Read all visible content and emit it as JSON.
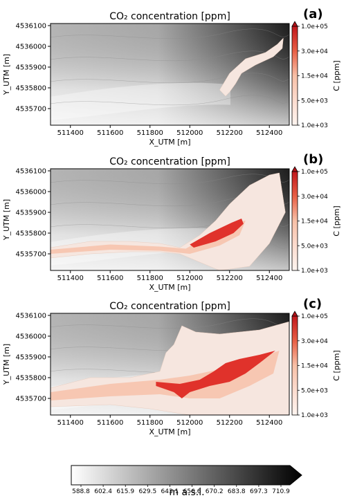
{
  "chart_data": [
    {
      "type": "heatmap",
      "panel": "(a)",
      "title": "CO₂ concentration [ppm]",
      "xlabel": "X_UTM [m]",
      "ylabel": "Y_UTM [m]",
      "xlim": [
        511300,
        512500
      ],
      "ylim": [
        4535620,
        4536110
      ],
      "xticks": [
        "511400",
        "511600",
        "511800",
        "512000",
        "512200",
        "512400"
      ],
      "yticks": [
        "4535700",
        "4535800",
        "4535900",
        "4536000",
        "4536100"
      ],
      "colorbar": {
        "label": "C [ppm]",
        "ticks": [
          "1.0e+03",
          "5.0e+03",
          "1.5e+04",
          "3.0e+04",
          "1.0e+05"
        ]
      },
      "plume": {
        "outer": [
          [
            512200,
            4535780
          ],
          [
            512180,
            4535760
          ],
          [
            512150,
            4535790
          ],
          [
            512200,
            4535870
          ],
          [
            512280,
            4535940
          ],
          [
            512380,
            4535970
          ],
          [
            512440,
            4536010
          ],
          [
            512470,
            4536040
          ],
          [
            512465,
            4535990
          ],
          [
            512420,
            4535950
          ],
          [
            512330,
            4535910
          ],
          [
            512260,
            4535870
          ],
          [
            512230,
            4535820
          ]
        ]
      }
    },
    {
      "type": "heatmap",
      "panel": "(b)",
      "title": "CO₂ concentration [ppm]",
      "xlabel": "X_UTM [m]",
      "ylabel": "Y_UTM [m]",
      "xlim": [
        511300,
        512500
      ],
      "ylim": [
        4535620,
        4536110
      ],
      "xticks": [
        "511400",
        "511600",
        "511800",
        "512000",
        "512200",
        "512400"
      ],
      "yticks": [
        "4535700",
        "4535800",
        "4535900",
        "4536000",
        "4536100"
      ],
      "colorbar": {
        "label": "C [ppm]",
        "ticks": [
          "1.0e+03",
          "5.0e+03",
          "1.5e+04",
          "3.0e+04",
          "1.0e+05"
        ]
      },
      "plume": {
        "outer": [
          [
            511300,
            4535730
          ],
          [
            511500,
            4535760
          ],
          [
            511700,
            4535760
          ],
          [
            511850,
            4535750
          ],
          [
            511950,
            4535730
          ],
          [
            512050,
            4535790
          ],
          [
            512130,
            4535860
          ],
          [
            512200,
            4535940
          ],
          [
            512300,
            4536030
          ],
          [
            512400,
            4536080
          ],
          [
            512450,
            4536090
          ],
          [
            512480,
            4535900
          ],
          [
            512400,
            4535750
          ],
          [
            512300,
            4535640
          ],
          [
            512150,
            4535620
          ],
          [
            512050,
            4535660
          ],
          [
            511950,
            4535700
          ],
          [
            511850,
            4535710
          ],
          [
            511700,
            4535710
          ],
          [
            511500,
            4535700
          ],
          [
            511300,
            4535680
          ]
        ],
        "mid": [
          [
            511300,
            4535720
          ],
          [
            511600,
            4535745
          ],
          [
            511850,
            4535735
          ],
          [
            511980,
            4535725
          ],
          [
            512100,
            4535790
          ],
          [
            512230,
            4535850
          ],
          [
            512280,
            4535860
          ],
          [
            512250,
            4535790
          ],
          [
            512150,
            4535740
          ],
          [
            512000,
            4535700
          ],
          [
            511850,
            4535715
          ],
          [
            511600,
            4535720
          ],
          [
            511300,
            4535700
          ]
        ],
        "core": [
          [
            512000,
            4535745
          ],
          [
            512100,
            4535800
          ],
          [
            512210,
            4535850
          ],
          [
            512260,
            4535870
          ],
          [
            512270,
            4535845
          ],
          [
            512220,
            4535800
          ],
          [
            512130,
            4535760
          ],
          [
            512020,
            4535730
          ]
        ]
      }
    },
    {
      "type": "heatmap",
      "panel": "(c)",
      "title": "CO₂ concentration [ppm]",
      "xlabel": "X_UTM [m]",
      "ylabel": "Y_UTM [m]",
      "xlim": [
        511300,
        512500
      ],
      "ylim": [
        4535620,
        4536110
      ],
      "xticks": [
        "511400",
        "511600",
        "511800",
        "512000",
        "512200",
        "512400"
      ],
      "yticks": [
        "4535700",
        "4535800",
        "4535900",
        "4536000",
        "4536100"
      ],
      "colorbar": {
        "label": "C [ppm]",
        "ticks": [
          "1.0e+03",
          "5.0e+03",
          "1.5e+04",
          "3.0e+04",
          "1.0e+05"
        ]
      },
      "plume": {
        "outer": [
          [
            511300,
            4535750
          ],
          [
            511500,
            4535800
          ],
          [
            511700,
            4535800
          ],
          [
            511850,
            4535830
          ],
          [
            511880,
            4535920
          ],
          [
            511920,
            4535960
          ],
          [
            511960,
            4536050
          ],
          [
            512030,
            4536020
          ],
          [
            512150,
            4536010
          ],
          [
            512250,
            4536020
          ],
          [
            512350,
            4536030
          ],
          [
            512500,
            4536070
          ],
          [
            512500,
            4535620
          ],
          [
            512000,
            4535620
          ],
          [
            511800,
            4535650
          ],
          [
            511600,
            4535670
          ],
          [
            511300,
            4535660
          ]
        ],
        "mid": [
          [
            511300,
            4535730
          ],
          [
            511600,
            4535770
          ],
          [
            511850,
            4535790
          ],
          [
            512000,
            4535810
          ],
          [
            512150,
            4535840
          ],
          [
            512300,
            4535880
          ],
          [
            512450,
            4535930
          ],
          [
            512420,
            4535820
          ],
          [
            512300,
            4535760
          ],
          [
            512150,
            4535700
          ],
          [
            512000,
            4535700
          ],
          [
            511850,
            4535720
          ],
          [
            511600,
            4535710
          ],
          [
            511300,
            4535690
          ]
        ],
        "core": [
          [
            511830,
            4535780
          ],
          [
            511950,
            4535770
          ],
          [
            512050,
            4535790
          ],
          [
            512120,
            4535830
          ],
          [
            512180,
            4535870
          ],
          [
            512250,
            4535890
          ],
          [
            512350,
            4535910
          ],
          [
            512430,
            4535930
          ],
          [
            512350,
            4535870
          ],
          [
            512280,
            4535820
          ],
          [
            512200,
            4535780
          ],
          [
            512100,
            4535760
          ],
          [
            512000,
            4535730
          ],
          [
            511960,
            4535700
          ],
          [
            511920,
            4535730
          ],
          [
            511830,
            4535760
          ]
        ]
      }
    }
  ],
  "elevation_colorbar": {
    "unit_label": "m a.s.l.",
    "ticks": [
      "588.8",
      "602.4",
      "615.9",
      "629.5",
      "643.1",
      "656.6",
      "670.2",
      "683.8",
      "697.3",
      "710.9"
    ]
  },
  "colors": {
    "plume_outer": "#f6e6df",
    "plume_mid": "#f7c1aa",
    "plume_core": "#e0322b",
    "cb_top": "#b21218"
  }
}
